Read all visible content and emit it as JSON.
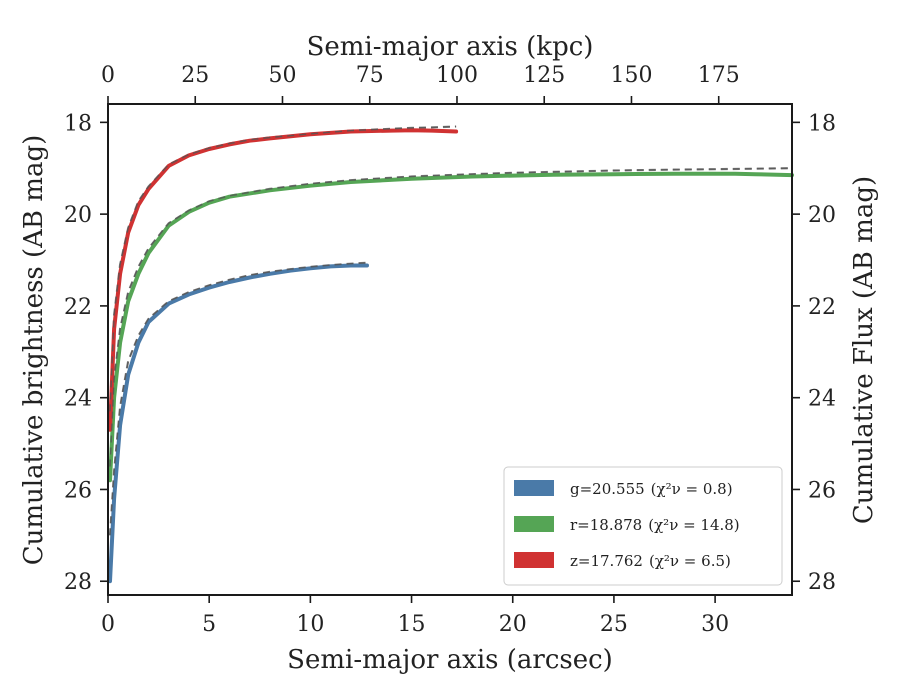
{
  "chart_data": {
    "type": "line",
    "xlabel": "Semi-major axis (arcsec)",
    "ylabel": "Cumulative brightness (AB mag)",
    "x2label": "Semi-major axis (kpc)",
    "y2label": "Cumulative Flux (AB mag)",
    "xlim": [
      0,
      33.8
    ],
    "ylim": [
      28.3,
      17.6
    ],
    "x2lim": [
      0,
      196
    ],
    "y_inverted": true,
    "xticks": [
      "0",
      "5",
      "10",
      "15",
      "20",
      "25",
      "30"
    ],
    "yticks": [
      "18",
      "20",
      "22",
      "24",
      "26",
      "28"
    ],
    "x2ticks": [
      "0",
      "25",
      "50",
      "75",
      "100",
      "125",
      "150",
      "175"
    ],
    "y2ticks": [
      "18",
      "20",
      "22",
      "24",
      "26",
      "28"
    ],
    "legend_position": "lower-right",
    "legend": [
      {
        "label": "g=20.555",
        "chi_label": "(χ²ν = 0.8)",
        "color": "#4a7aa8"
      },
      {
        "label": "r=18.878",
        "chi_label": "(χ²ν = 14.8)",
        "color": "#55a555"
      },
      {
        "label": "z=17.762",
        "chi_label": "(χ²ν = 6.5)",
        "color": "#d03232"
      }
    ],
    "series": [
      {
        "name": "g",
        "color": "#4a7aa8",
        "x": [
          0.1,
          0.3,
          0.6,
          1,
          1.5,
          2,
          3,
          4,
          5,
          6,
          7,
          8,
          9,
          10,
          11,
          12,
          12.8
        ],
        "y": [
          28.0,
          26.2,
          24.6,
          23.5,
          22.8,
          22.35,
          21.95,
          21.75,
          21.6,
          21.48,
          21.38,
          21.3,
          21.23,
          21.18,
          21.14,
          21.12,
          21.12
        ]
      },
      {
        "name": "r",
        "color": "#55a555",
        "x": [
          0.1,
          0.3,
          0.6,
          1,
          1.5,
          2,
          3,
          4,
          5,
          6,
          8,
          10,
          12,
          15,
          18,
          20,
          22,
          25,
          28,
          30,
          31,
          32,
          33.8
        ],
        "y": [
          25.8,
          24.0,
          22.8,
          21.9,
          21.3,
          20.85,
          20.25,
          19.95,
          19.75,
          19.62,
          19.48,
          19.38,
          19.3,
          19.23,
          19.18,
          19.16,
          19.14,
          19.13,
          19.12,
          19.12,
          19.12,
          19.13,
          19.15
        ]
      },
      {
        "name": "z",
        "color": "#d03232",
        "x": [
          0.1,
          0.3,
          0.6,
          1,
          1.5,
          2,
          3,
          4,
          5,
          6,
          7,
          8,
          10,
          12,
          14,
          15,
          16,
          17.2
        ],
        "y": [
          24.7,
          22.5,
          21.3,
          20.4,
          19.8,
          19.45,
          18.95,
          18.72,
          18.58,
          18.48,
          18.4,
          18.35,
          18.26,
          18.2,
          18.18,
          18.17,
          18.18,
          18.2
        ]
      }
    ],
    "model_fits": [
      {
        "name": "g fit",
        "color": "#888888",
        "x": [
          0.1,
          0.3,
          0.6,
          1,
          1.5,
          2,
          3,
          4,
          5,
          6,
          7,
          8,
          9,
          10,
          11,
          12,
          12.8
        ],
        "y": [
          27.0,
          25.6,
          24.2,
          23.2,
          22.65,
          22.28,
          21.9,
          21.7,
          21.55,
          21.43,
          21.33,
          21.26,
          21.2,
          21.15,
          21.11,
          21.08,
          21.06
        ]
      },
      {
        "name": "r fit",
        "color": "#888888",
        "x": [
          0.1,
          0.3,
          0.6,
          1,
          1.5,
          2,
          3,
          4,
          5,
          6,
          8,
          10,
          12,
          15,
          18,
          20,
          22,
          25,
          28,
          30,
          33.8
        ],
        "y": [
          25.5,
          23.6,
          22.5,
          21.7,
          21.15,
          20.75,
          20.2,
          19.92,
          19.72,
          19.6,
          19.45,
          19.34,
          19.26,
          19.18,
          19.13,
          19.1,
          19.08,
          19.05,
          19.03,
          19.02,
          19.0
        ]
      },
      {
        "name": "z fit",
        "color": "#888888",
        "x": [
          0.1,
          0.3,
          0.6,
          1,
          1.5,
          2,
          3,
          4,
          5,
          6,
          7,
          8,
          10,
          12,
          14,
          15,
          16,
          17.2
        ],
        "y": [
          24.3,
          22.2,
          21.1,
          20.3,
          19.72,
          19.4,
          18.92,
          18.7,
          18.56,
          18.46,
          18.38,
          18.33,
          18.25,
          18.18,
          18.14,
          18.12,
          18.11,
          18.09
        ]
      }
    ]
  }
}
